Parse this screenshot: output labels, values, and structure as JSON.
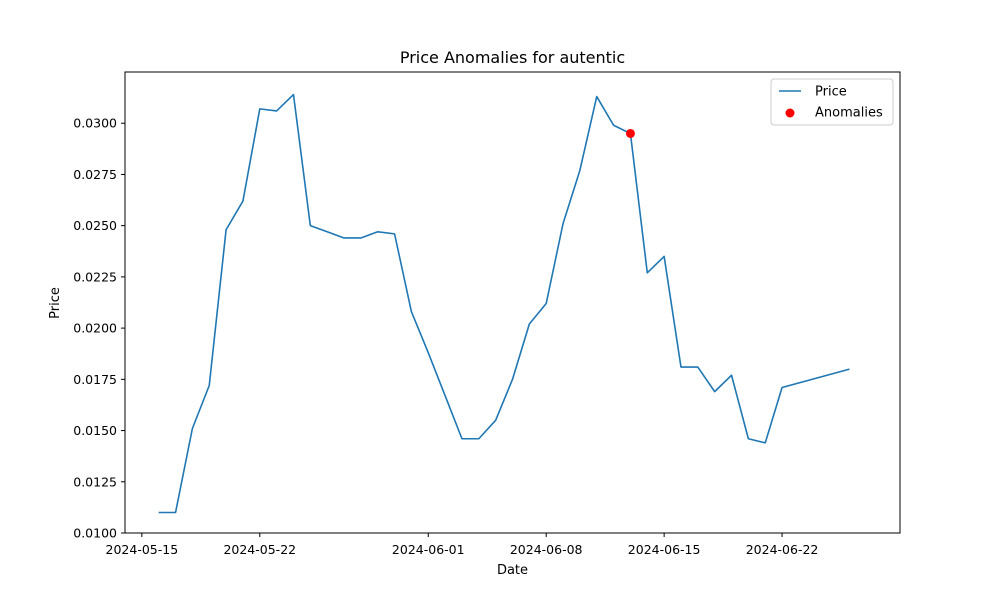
{
  "chart_data": {
    "type": "line",
    "title": "Price Anomalies for autentic",
    "xlabel": "Date",
    "ylabel": "Price",
    "xlim": [
      "2024-05-14",
      "2024-06-29"
    ],
    "ylim": [
      0.01,
      0.0325
    ],
    "grid": false,
    "legend_position": "top-right",
    "x_ticks": [
      "2024-05-15",
      "2024-05-22",
      "2024-06-01",
      "2024-06-08",
      "2024-06-15",
      "2024-06-22"
    ],
    "y_ticks": [
      "0.0100",
      "0.0125",
      "0.0150",
      "0.0175",
      "0.0200",
      "0.0225",
      "0.0250",
      "0.0275",
      "0.0300"
    ],
    "series": [
      {
        "name": "Price",
        "color": "#1f77b4",
        "points": [
          {
            "x": "2024-05-16",
            "y": 0.011
          },
          {
            "x": "2024-05-17",
            "y": 0.011
          },
          {
            "x": "2024-05-18",
            "y": 0.0151
          },
          {
            "x": "2024-05-19",
            "y": 0.0172
          },
          {
            "x": "2024-05-20",
            "y": 0.0248
          },
          {
            "x": "2024-05-21",
            "y": 0.0262
          },
          {
            "x": "2024-05-22",
            "y": 0.0307
          },
          {
            "x": "2024-05-23",
            "y": 0.0306
          },
          {
            "x": "2024-05-24",
            "y": 0.0314
          },
          {
            "x": "2024-05-25",
            "y": 0.025
          },
          {
            "x": "2024-05-26",
            "y": 0.0247
          },
          {
            "x": "2024-05-27",
            "y": 0.0244
          },
          {
            "x": "2024-05-28",
            "y": 0.0244
          },
          {
            "x": "2024-05-29",
            "y": 0.0247
          },
          {
            "x": "2024-05-30",
            "y": 0.0246
          },
          {
            "x": "2024-05-31",
            "y": 0.0208
          },
          {
            "x": "2024-06-01",
            "y": 0.0188
          },
          {
            "x": "2024-06-02",
            "y": 0.0167
          },
          {
            "x": "2024-06-03",
            "y": 0.0146
          },
          {
            "x": "2024-06-04",
            "y": 0.0146
          },
          {
            "x": "2024-06-05",
            "y": 0.0155
          },
          {
            "x": "2024-06-06",
            "y": 0.0175
          },
          {
            "x": "2024-06-07",
            "y": 0.0202
          },
          {
            "x": "2024-06-08",
            "y": 0.0212
          },
          {
            "x": "2024-06-09",
            "y": 0.0251
          },
          {
            "x": "2024-06-10",
            "y": 0.0277
          },
          {
            "x": "2024-06-11",
            "y": 0.0313
          },
          {
            "x": "2024-06-12",
            "y": 0.0299
          },
          {
            "x": "2024-06-13",
            "y": 0.0295
          },
          {
            "x": "2024-06-14",
            "y": 0.0227
          },
          {
            "x": "2024-06-15",
            "y": 0.0235
          },
          {
            "x": "2024-06-16",
            "y": 0.0181
          },
          {
            "x": "2024-06-17",
            "y": 0.0181
          },
          {
            "x": "2024-06-18",
            "y": 0.0169
          },
          {
            "x": "2024-06-19",
            "y": 0.0177
          },
          {
            "x": "2024-06-20",
            "y": 0.0146
          },
          {
            "x": "2024-06-21",
            "y": 0.0144
          },
          {
            "x": "2024-06-22",
            "y": 0.0171
          },
          {
            "x": "2024-06-26",
            "y": 0.018
          }
        ]
      },
      {
        "name": "Anomalies",
        "type": "scatter",
        "color": "#ff0000",
        "points": [
          {
            "x": "2024-06-13",
            "y": 0.0295
          }
        ]
      }
    ]
  }
}
